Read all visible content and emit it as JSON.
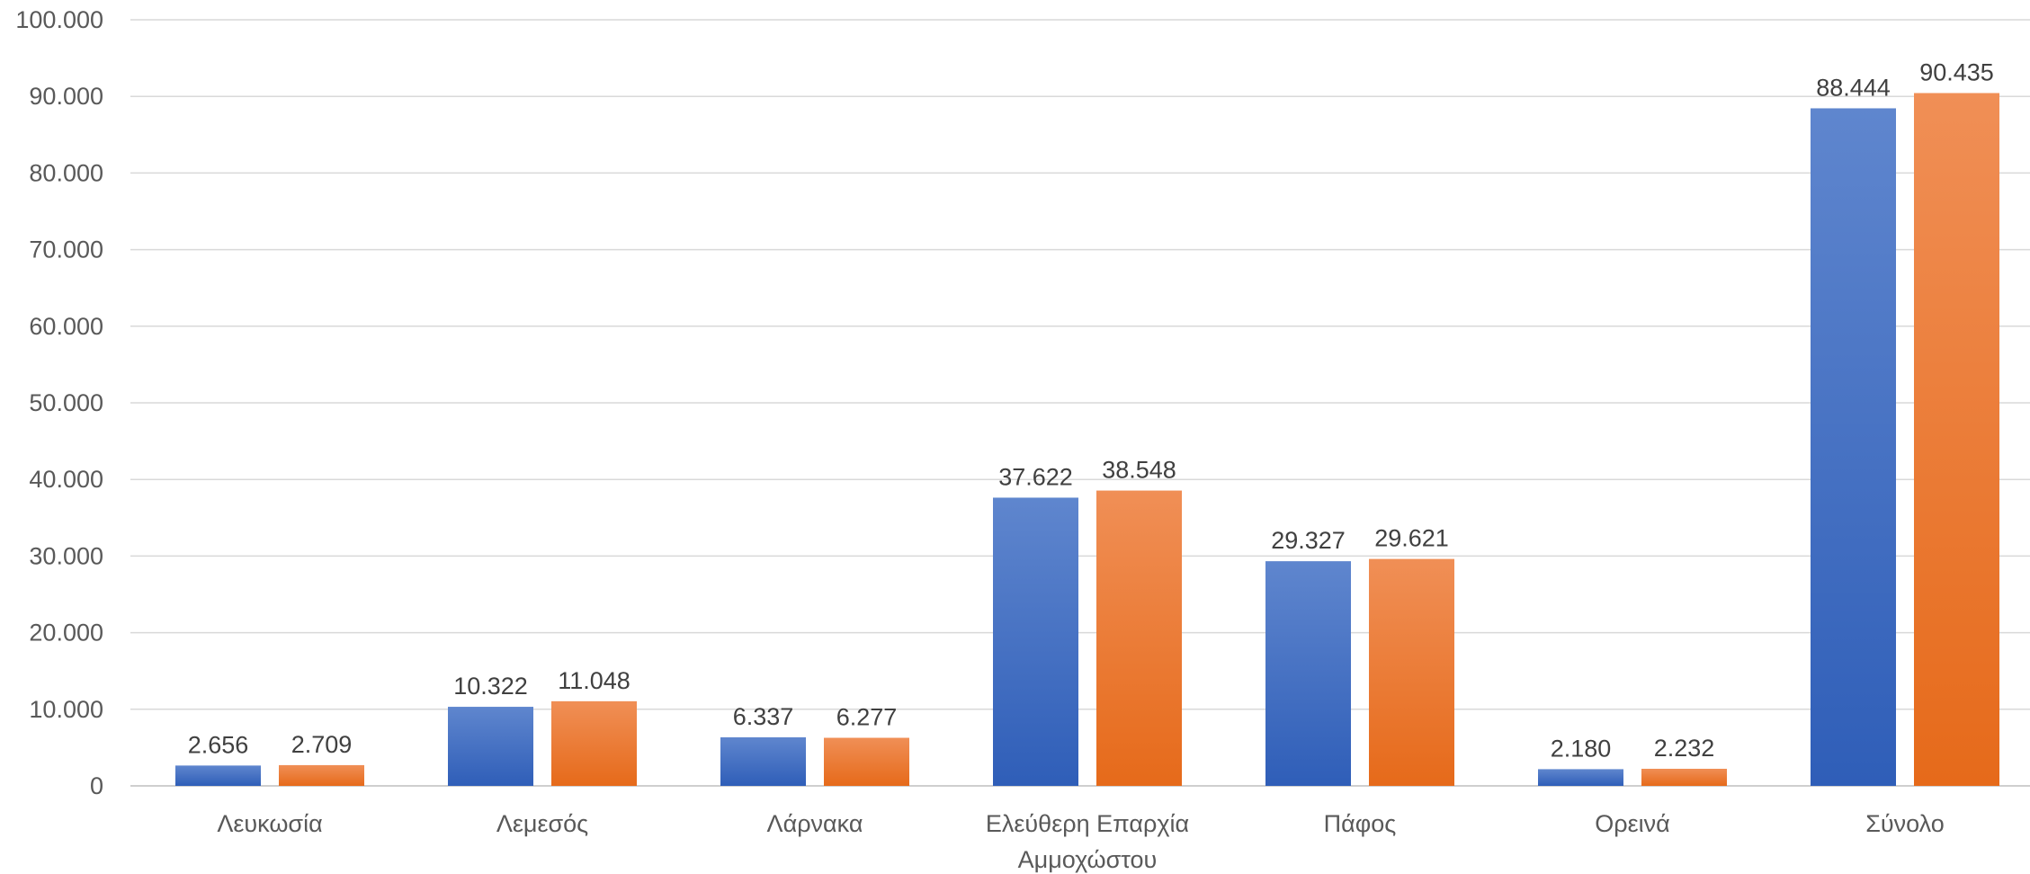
{
  "chart_data": {
    "type": "bar",
    "categories": [
      "Λευκωσία",
      "Λεμεσός",
      "Λάρνακα",
      "Ελεύθερη Επαρχία Αμμοχώστου",
      "Πάφος",
      "Ορεινά",
      "Σύνολο"
    ],
    "series": [
      {
        "color": "#4472C4",
        "values": [
          2656,
          10322,
          6337,
          37622,
          29327,
          2180,
          88444
        ]
      },
      {
        "color": "#ED7D31",
        "values": [
          2709,
          11048,
          6277,
          38548,
          29621,
          2232,
          90435
        ]
      }
    ],
    "data_labels": [
      [
        "2.656",
        "10.322",
        "6.337",
        "37.622",
        "29.327",
        "2.180",
        "88.444"
      ],
      [
        "2.709",
        "11.048",
        "6.277",
        "38.548",
        "29.621",
        "2.232",
        "90.435"
      ]
    ],
    "y_ticks": [
      "0",
      "10.000",
      "20.000",
      "30.000",
      "40.000",
      "50.000",
      "60.000",
      "70.000",
      "80.000",
      "90.000",
      "100.000"
    ],
    "ylim": [
      0,
      100000
    ],
    "title": "",
    "xlabel": "",
    "ylabel": "",
    "grid": true,
    "legend": "none"
  }
}
